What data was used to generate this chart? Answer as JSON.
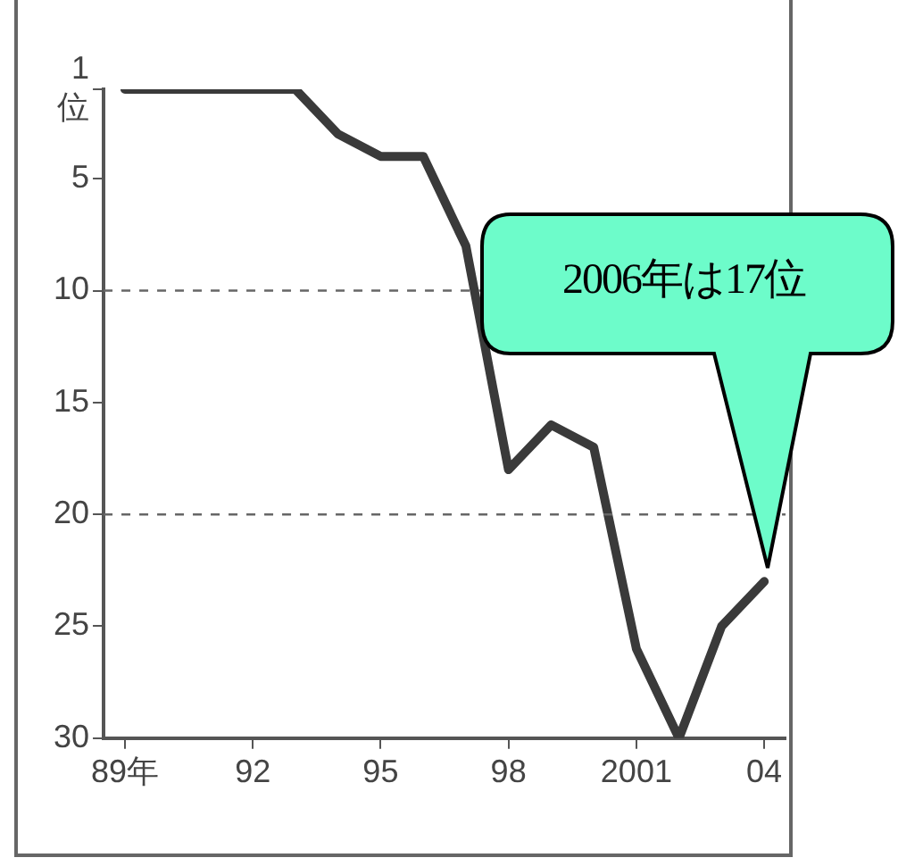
{
  "chart_data": {
    "type": "line",
    "categories": [
      "89年",
      null,
      null,
      "92",
      null,
      null,
      "95",
      null,
      null,
      "98",
      null,
      null,
      "2001",
      null,
      null,
      "04"
    ],
    "series": [
      {
        "color": "#3a3a3a",
        "values": [
          1,
          1,
          1,
          1,
          1,
          3,
          4,
          4,
          8,
          18,
          16,
          17,
          26,
          30,
          25,
          23
        ]
      }
    ],
    "ylim": [
      30,
      1
    ],
    "yticks": [
      {
        "value": 1,
        "label": "1\n位"
      },
      5,
      10,
      15,
      20,
      25,
      30
    ],
    "ref_lines": [
      {
        "axis": "y",
        "value": 10,
        "line_style": "dashed",
        "color": "#666666"
      },
      {
        "axis": "y",
        "value": 20,
        "line_style": "dashed",
        "color": "#666666"
      }
    ],
    "grid": false,
    "legend": false,
    "marker": "none",
    "line_style": "solid",
    "annotations": [
      "2006年は17位"
    ]
  }
}
